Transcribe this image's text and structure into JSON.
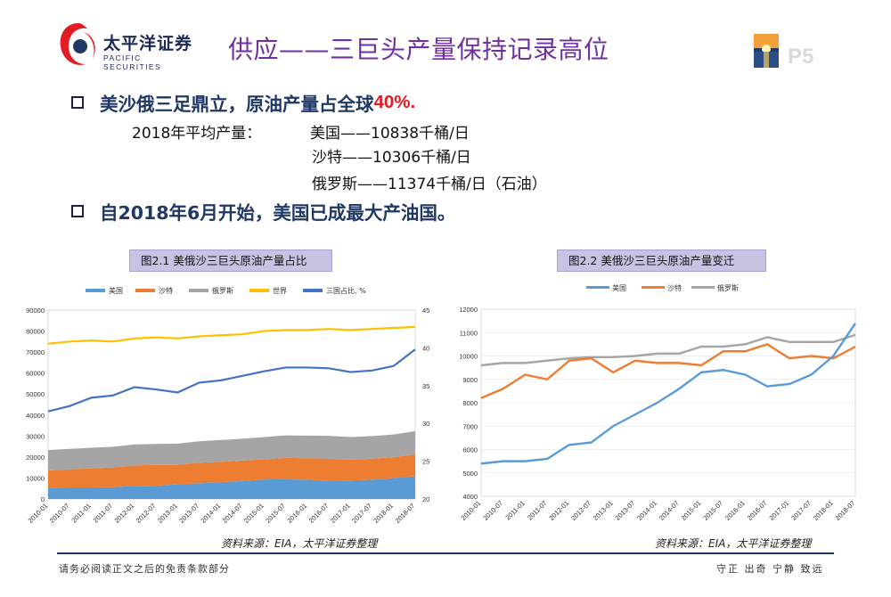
{
  "header": {
    "logo_cn": "太平洋证券",
    "logo_en": "PACIFIC SECURITIES",
    "title": "供应——三巨头产量保持记录高位",
    "page_number": "P5"
  },
  "bullets": {
    "b1_text": "美沙俄三足鼎立，原油产量占全球",
    "b1_highlight": "40%.",
    "highlight_color": "#e31b23",
    "production_label": "2018年平均产量：",
    "production_us": "美国——10838千桶/日",
    "production_sa": "沙特——10306千桶/日",
    "production_ru": "俄罗斯——11374千桶/日（石油）",
    "b2_text": "自2018年6月开始，美国已成最大产油国。"
  },
  "chart1": {
    "caption": "图2.1 美俄沙三巨头原油产量占比",
    "source": "资料来源：EIA，太平洋证券整理"
  },
  "chart2": {
    "caption": "图2.2 美俄沙三巨头原油产量变迁",
    "source": "资料来源：EIA，太平洋证券整理"
  },
  "chart_data": [
    {
      "type": "area",
      "title": "图2.1 美俄沙三巨头原油产量占比",
      "x": [
        "2010-01",
        "2010-07",
        "2011-01",
        "2011-07",
        "2012-01",
        "2012-07",
        "2013-01",
        "2013-07",
        "2014-01",
        "2014-07",
        "2015-01",
        "2015-07",
        "2016-01",
        "2016-07",
        "2017-01",
        "2017-07",
        "2018-01",
        "2018-07"
      ],
      "stacked_series": [
        {
          "name": "美国",
          "color": "#5b9bd5",
          "values": [
            5400,
            5500,
            5500,
            5600,
            6200,
            6300,
            7000,
            7500,
            8000,
            8600,
            9300,
            9400,
            9200,
            8700,
            8800,
            9200,
            10000,
            10900
          ]
        },
        {
          "name": "沙特",
          "color": "#ed7d31",
          "values": [
            8200,
            8600,
            9100,
            9400,
            9800,
            9900,
            9300,
            9800,
            9700,
            9700,
            9600,
            10200,
            10200,
            10500,
            9900,
            10000,
            9900,
            10300
          ]
        },
        {
          "name": "俄罗斯",
          "color": "#a5a5a5",
          "values": [
            9700,
            9800,
            9800,
            9900,
            10000,
            10000,
            10100,
            10200,
            10400,
            10400,
            10600,
            10700,
            10800,
            10900,
            10800,
            10800,
            10800,
            11100
          ]
        }
      ],
      "line_series": [
        {
          "name": "世界",
          "color": "#ffc000",
          "axis": "left",
          "values": [
            74000,
            75000,
            75500,
            75000,
            76500,
            77000,
            76500,
            77500,
            78000,
            78500,
            80000,
            80500,
            80500,
            81000,
            80500,
            81000,
            81500,
            82000
          ]
        },
        {
          "name": "三国占比, %",
          "color": "#4472c4",
          "axis": "right",
          "values": [
            31.6,
            32.3,
            33.4,
            33.7,
            34.8,
            34.5,
            34.1,
            35.4,
            35.7,
            36.3,
            36.9,
            37.4,
            37.4,
            37.3,
            36.8,
            37.0,
            37.6,
            39.8
          ]
        }
      ],
      "left_axis": {
        "ylim": [
          0,
          90000
        ],
        "ticks": [
          0,
          10000,
          20000,
          30000,
          40000,
          50000,
          60000,
          70000,
          80000,
          90000
        ]
      },
      "right_axis": {
        "ylim": [
          20,
          45
        ],
        "ticks": [
          20,
          25,
          30,
          35,
          40,
          45
        ]
      },
      "legend": [
        "美国",
        "沙特",
        "俄罗斯",
        "世界",
        "三国占比, %"
      ]
    },
    {
      "type": "line",
      "title": "图2.2 美俄沙三巨头原油产量变迁",
      "x": [
        "2010-01",
        "2010-07",
        "2011-01",
        "2011-07",
        "2012-01",
        "2012-07",
        "2013-01",
        "2013-07",
        "2014-01",
        "2014-07",
        "2015-01",
        "2015-07",
        "2016-01",
        "2016-07",
        "2017-01",
        "2017-07",
        "2018-01",
        "2018-07"
      ],
      "series": [
        {
          "name": "美国",
          "color": "#5b9bd5",
          "values": [
            5400,
            5500,
            5500,
            5600,
            6200,
            6300,
            7000,
            7500,
            8000,
            8600,
            9300,
            9400,
            9200,
            8700,
            8800,
            9200,
            10000,
            11400
          ]
        },
        {
          "name": "沙特",
          "color": "#ed7d31",
          "values": [
            8200,
            8600,
            9200,
            9000,
            9800,
            9900,
            9300,
            9800,
            9700,
            9700,
            9600,
            10200,
            10200,
            10500,
            9900,
            10000,
            9900,
            10400
          ]
        },
        {
          "name": "俄罗斯",
          "color": "#a5a5a5",
          "values": [
            9600,
            9700,
            9700,
            9800,
            9900,
            9950,
            9950,
            10000,
            10100,
            10100,
            10400,
            10400,
            10500,
            10800,
            10600,
            10600,
            10600,
            10900
          ]
        }
      ],
      "ylim": [
        4000,
        12000
      ],
      "ticks": [
        4000,
        5000,
        6000,
        7000,
        8000,
        9000,
        10000,
        11000,
        12000
      ],
      "legend": [
        "美国",
        "沙特",
        "俄罗斯"
      ]
    }
  ],
  "footer": {
    "left": "请务必阅读正文之后的免责条款部分",
    "right": "守正 出奇 宁静 致远"
  },
  "colors": {
    "title": "#7030a0",
    "bullet": "#1f3864",
    "accent": "#e31b23"
  }
}
